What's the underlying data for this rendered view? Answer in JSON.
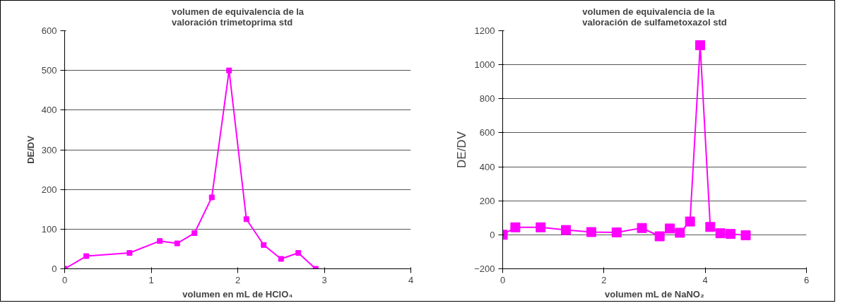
{
  "chart_data": [
    {
      "type": "line",
      "title": "volumen de equivalencia de la\nvaloración trimetoprima std",
      "xlabel": "volumen en mL de HClO₄",
      "ylabel": "DE/DV",
      "x": [
        0,
        0.25,
        0.75,
        1.1,
        1.3,
        1.5,
        1.7,
        1.9,
        2.1,
        2.3,
        2.5,
        2.7,
        2.9
      ],
      "series": [
        {
          "color": "#ff00ff",
          "values": [
            0,
            32,
            40,
            70,
            64,
            90,
            180,
            500,
            125,
            60,
            25,
            40,
            0
          ]
        }
      ],
      "xlim": [
        0,
        4
      ],
      "xticks": [
        0,
        1,
        2,
        3,
        4
      ],
      "ylim": [
        0,
        600
      ],
      "yticks": [
        0,
        100,
        200,
        300,
        400,
        500,
        600
      ],
      "grid": "y",
      "marker": "square"
    },
    {
      "type": "line",
      "title": "volumen de equivalencia de la\nvaloración de sulfametoxazol std",
      "xlabel": "volumen mL de NaNO₂",
      "ylabel": "DE/DV",
      "x": [
        0,
        0.25,
        0.75,
        1.25,
        1.75,
        2.25,
        2.75,
        3.1,
        3.3,
        3.5,
        3.7,
        3.9,
        4.1,
        4.3,
        4.5,
        4.8
      ],
      "series": [
        {
          "color": "#ff00ff",
          "values": [
            0,
            44,
            44,
            28,
            16,
            14,
            40,
            -9,
            37,
            12,
            78,
            1115,
            46,
            9,
            5,
            -3
          ]
        }
      ],
      "xlim": [
        0,
        6
      ],
      "xticks": [
        0,
        2,
        4,
        6
      ],
      "ylim": [
        -200,
        1200
      ],
      "yticks": [
        -200,
        0,
        200,
        400,
        600,
        800,
        1000,
        1200
      ],
      "grid": "y",
      "marker": "square"
    }
  ]
}
